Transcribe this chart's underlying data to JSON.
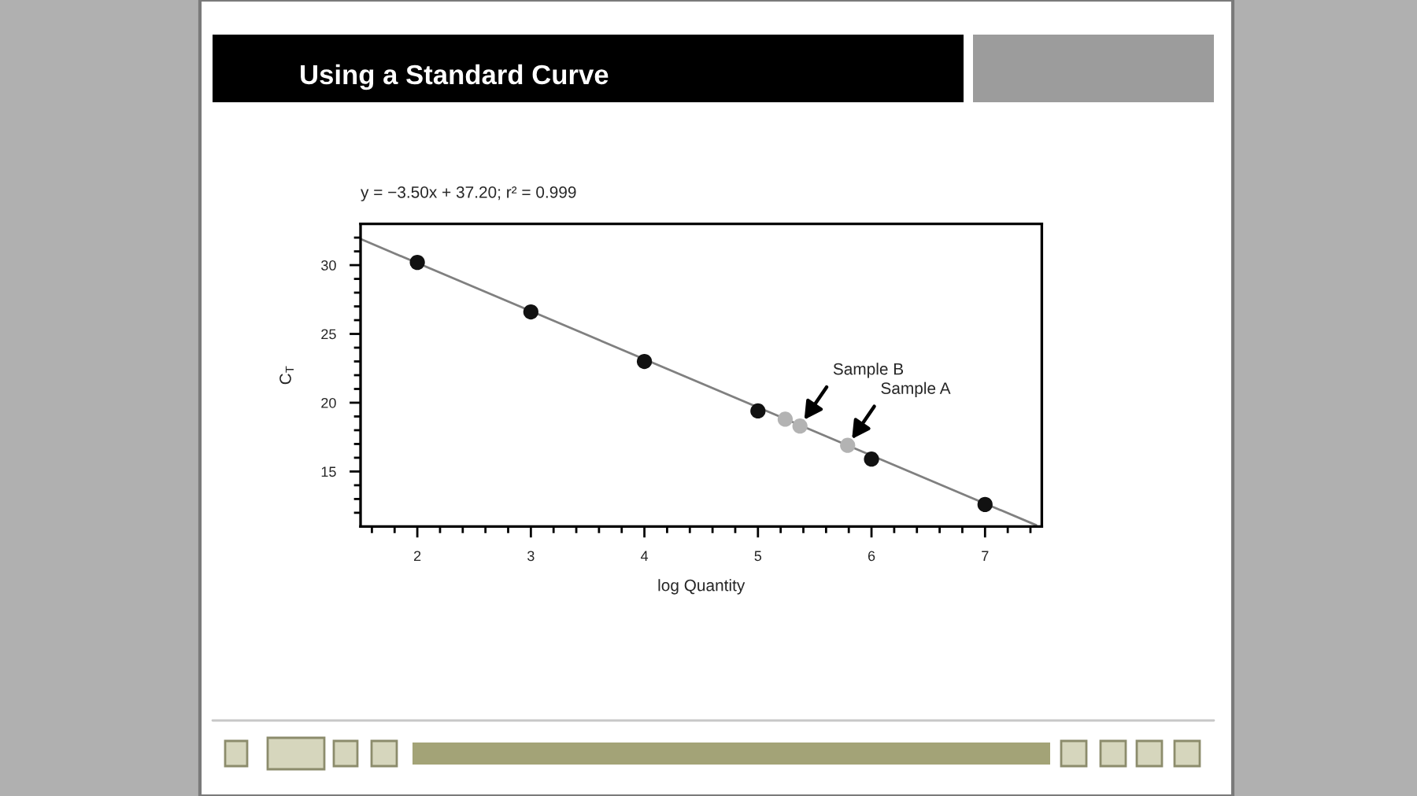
{
  "chart_data": {
    "type": "scatter",
    "title": "Using a Standard Curve",
    "subtitle": "y = −3.50x + 37.20; r² = 0.999",
    "xlabel": "log Quantity",
    "ylabel": "C$_{T}$",
    "marker": "circle",
    "series": [
      {
        "color": "#111111",
        "x": [
          2,
          3,
          4,
          5,
          6,
          7
        ],
        "values": [
          30.2,
          26.6,
          23.0,
          19.4,
          15.9,
          12.6
        ]
      },
      {
        "color": "#b3b3b3",
        "x": [
          5.24,
          5.37,
          5.79
        ],
        "values": [
          18.8,
          18.3,
          16.9
        ]
      },
      {
        "type": "line",
        "marker": "none",
        "color": "#808080",
        "x": [
          1.5,
          7.45
        ],
        "values": [
          31.9,
          11.1
        ]
      }
    ],
    "xlim": [
      1.5,
      7.5
    ],
    "ylim": [
      11,
      33
    ],
    "xticks": [
      {
        "value": 1.6,
        "label": null
      },
      {
        "value": 1.8,
        "label": null
      },
      2,
      {
        "value": 2.2,
        "label": null
      },
      {
        "value": 2.4,
        "label": null
      },
      {
        "value": 2.6,
        "label": null
      },
      {
        "value": 2.8,
        "label": null
      },
      3,
      {
        "value": 3.2,
        "label": null
      },
      {
        "value": 3.4,
        "label": null
      },
      {
        "value": 3.6,
        "label": null
      },
      {
        "value": 3.8,
        "label": null
      },
      4,
      {
        "value": 4.2,
        "label": null
      },
      {
        "value": 4.4,
        "label": null
      },
      {
        "value": 4.6,
        "label": null
      },
      {
        "value": 4.8,
        "label": null
      },
      5,
      {
        "value": 5.2,
        "label": null
      },
      {
        "value": 5.4,
        "label": null
      },
      {
        "value": 5.6,
        "label": null
      },
      {
        "value": 5.8,
        "label": null
      },
      6,
      {
        "value": 6.2,
        "label": null
      },
      {
        "value": 6.4,
        "label": null
      },
      {
        "value": 6.6,
        "label": null
      },
      {
        "value": 6.8,
        "label": null
      },
      7,
      {
        "value": 7.2,
        "label": null
      },
      {
        "value": 7.4,
        "label": null
      }
    ],
    "yticks": [
      {
        "value": 12,
        "label": null
      },
      {
        "value": 13,
        "label": null
      },
      {
        "value": 14,
        "label": null
      },
      15,
      {
        "value": 16,
        "label": null
      },
      {
        "value": 17,
        "label": null
      },
      {
        "value": 18,
        "label": null
      },
      {
        "value": 19,
        "label": null
      },
      20,
      {
        "value": 21,
        "label": null
      },
      {
        "value": 22,
        "label": null
      },
      {
        "value": 23,
        "label": null
      },
      {
        "value": 24,
        "label": null
      },
      25,
      {
        "value": 26,
        "label": null
      },
      {
        "value": 27,
        "label": null
      },
      {
        "value": 28,
        "label": null
      },
      {
        "value": 29,
        "label": null
      },
      30,
      {
        "value": 31,
        "label": null
      },
      {
        "value": 32,
        "label": null
      }
    ],
    "annotations": [
      {
        "text": "Sample B",
        "x": 5.37,
        "y": 18.3
      },
      {
        "text": "Sample A",
        "x": 5.79,
        "y": 16.9
      }
    ]
  }
}
